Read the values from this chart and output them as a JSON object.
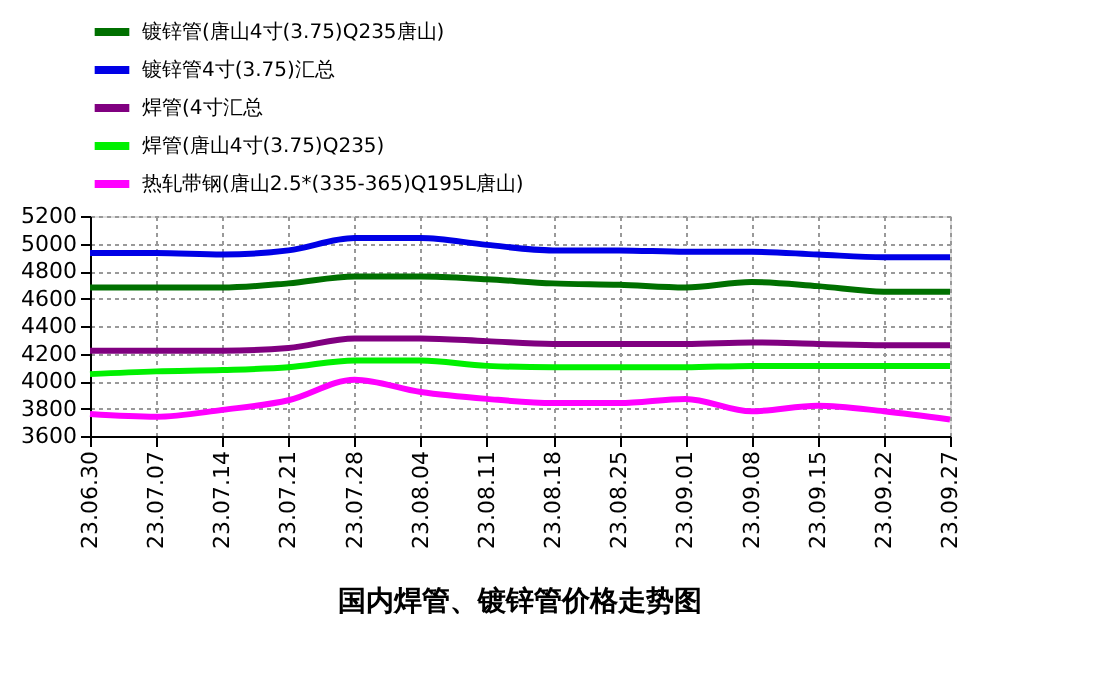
{
  "chart_data": {
    "type": "line",
    "title": "国内焊管、镀锌管价格走势图",
    "categories": [
      "23.06.30",
      "23.07.07",
      "23.07.14",
      "23.07.21",
      "23.07.28",
      "23.08.04",
      "23.08.11",
      "23.08.18",
      "23.08.25",
      "23.09.01",
      "23.09.08",
      "23.09.15",
      "23.09.22",
      "23.09.27"
    ],
    "series": [
      {
        "name": "镀锌管(唐山4寸(3.75)Q235唐山)",
        "color": "#007000",
        "values": [
          4680,
          4680,
          4680,
          4710,
          4760,
          4760,
          4740,
          4710,
          4700,
          4680,
          4720,
          4690,
          4650,
          4650
        ]
      },
      {
        "name": "镀锌管4寸(3.75)汇总",
        "color": "#0000e6",
        "values": [
          4930,
          4930,
          4920,
          4950,
          5040,
          5040,
          4990,
          4950,
          4950,
          4940,
          4940,
          4920,
          4900,
          4900
        ]
      },
      {
        "name": "焊管(4寸汇总",
        "color": "#800080",
        "values": [
          4220,
          4220,
          4220,
          4240,
          4310,
          4310,
          4290,
          4270,
          4270,
          4270,
          4280,
          4270,
          4260,
          4260
        ]
      },
      {
        "name": "焊管(唐山4寸(3.75)Q235)",
        "color": "#00f000",
        "values": [
          4050,
          4070,
          4080,
          4100,
          4150,
          4150,
          4110,
          4100,
          4100,
          4100,
          4110,
          4110,
          4110,
          4110
        ]
      },
      {
        "name": "热轧带钢(唐山2.5*(335-365)Q195L唐山)",
        "color": "#ff00ff",
        "values": [
          3760,
          3740,
          3790,
          3860,
          4010,
          3920,
          3870,
          3840,
          3840,
          3870,
          3780,
          3820,
          3780,
          3720
        ]
      }
    ],
    "ylim": [
      3600,
      5200
    ],
    "yticks": [
      3600,
      3800,
      4000,
      4200,
      4400,
      4600,
      4800,
      5000,
      5200
    ],
    "grid": true,
    "legend": "top",
    "marker": "none",
    "line_style": "solid"
  }
}
